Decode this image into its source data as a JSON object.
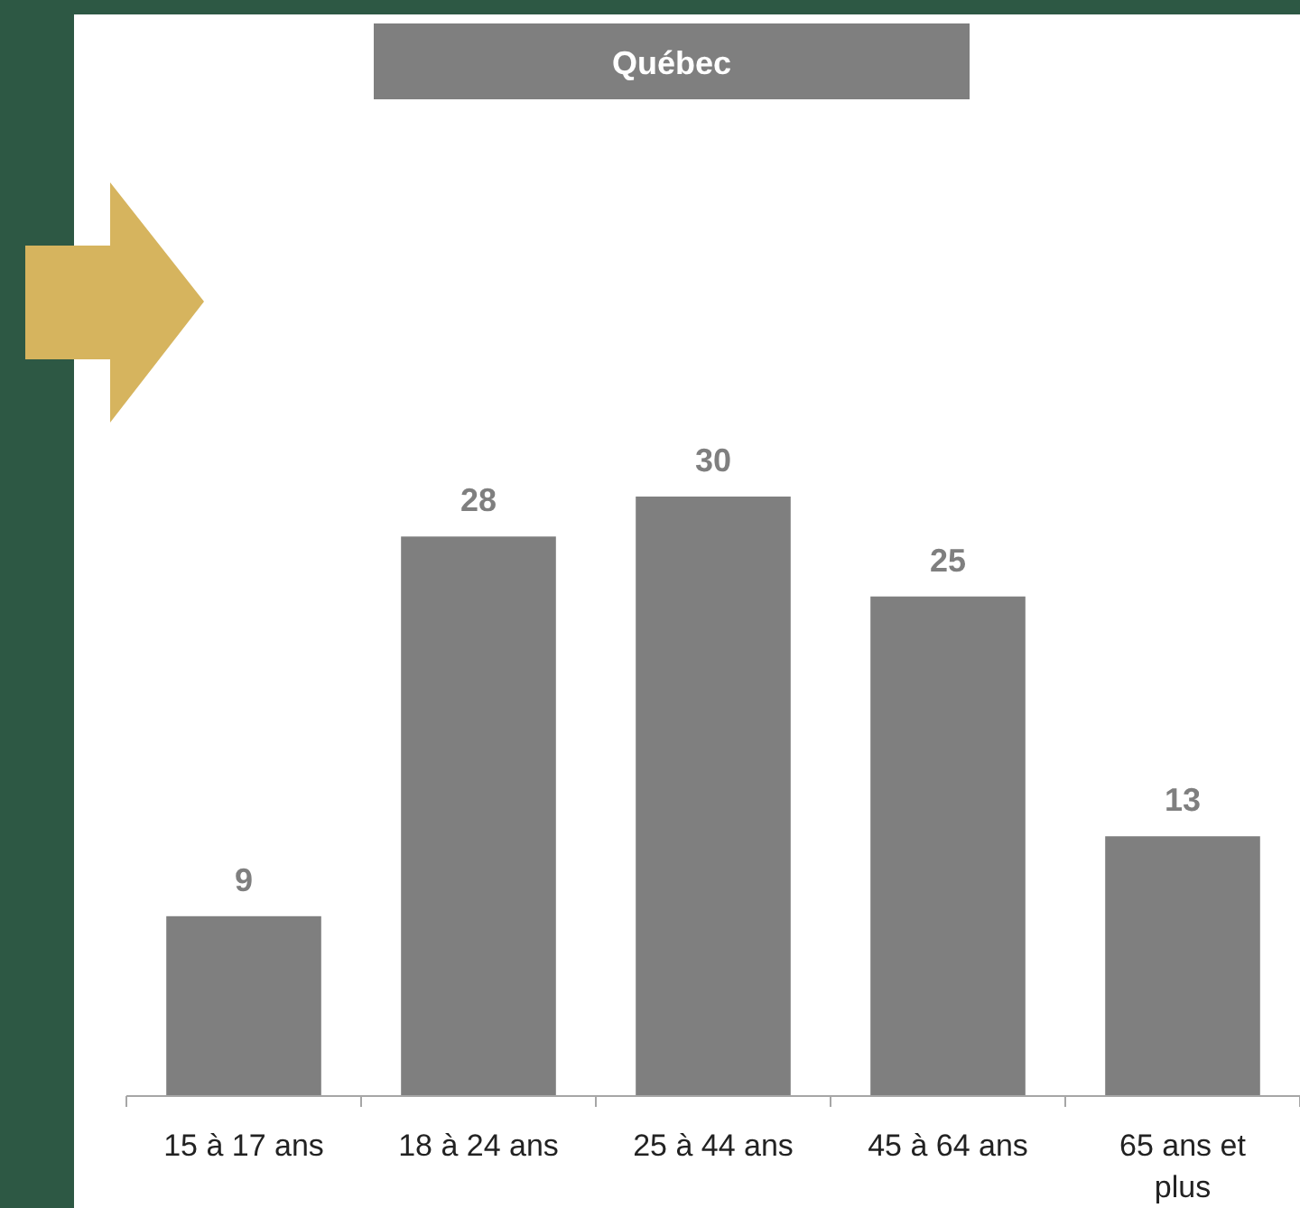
{
  "chart_data": {
    "type": "bar",
    "title": "Québec",
    "categories": [
      "15 à 17 ans",
      "18 à 24 ans",
      "25 à 44 ans",
      "45 à 64 ans",
      "65 ans et plus"
    ],
    "values": [
      9,
      28,
      30,
      25,
      13
    ],
    "color": "#7f7f7f",
    "data_labels": true
  }
}
